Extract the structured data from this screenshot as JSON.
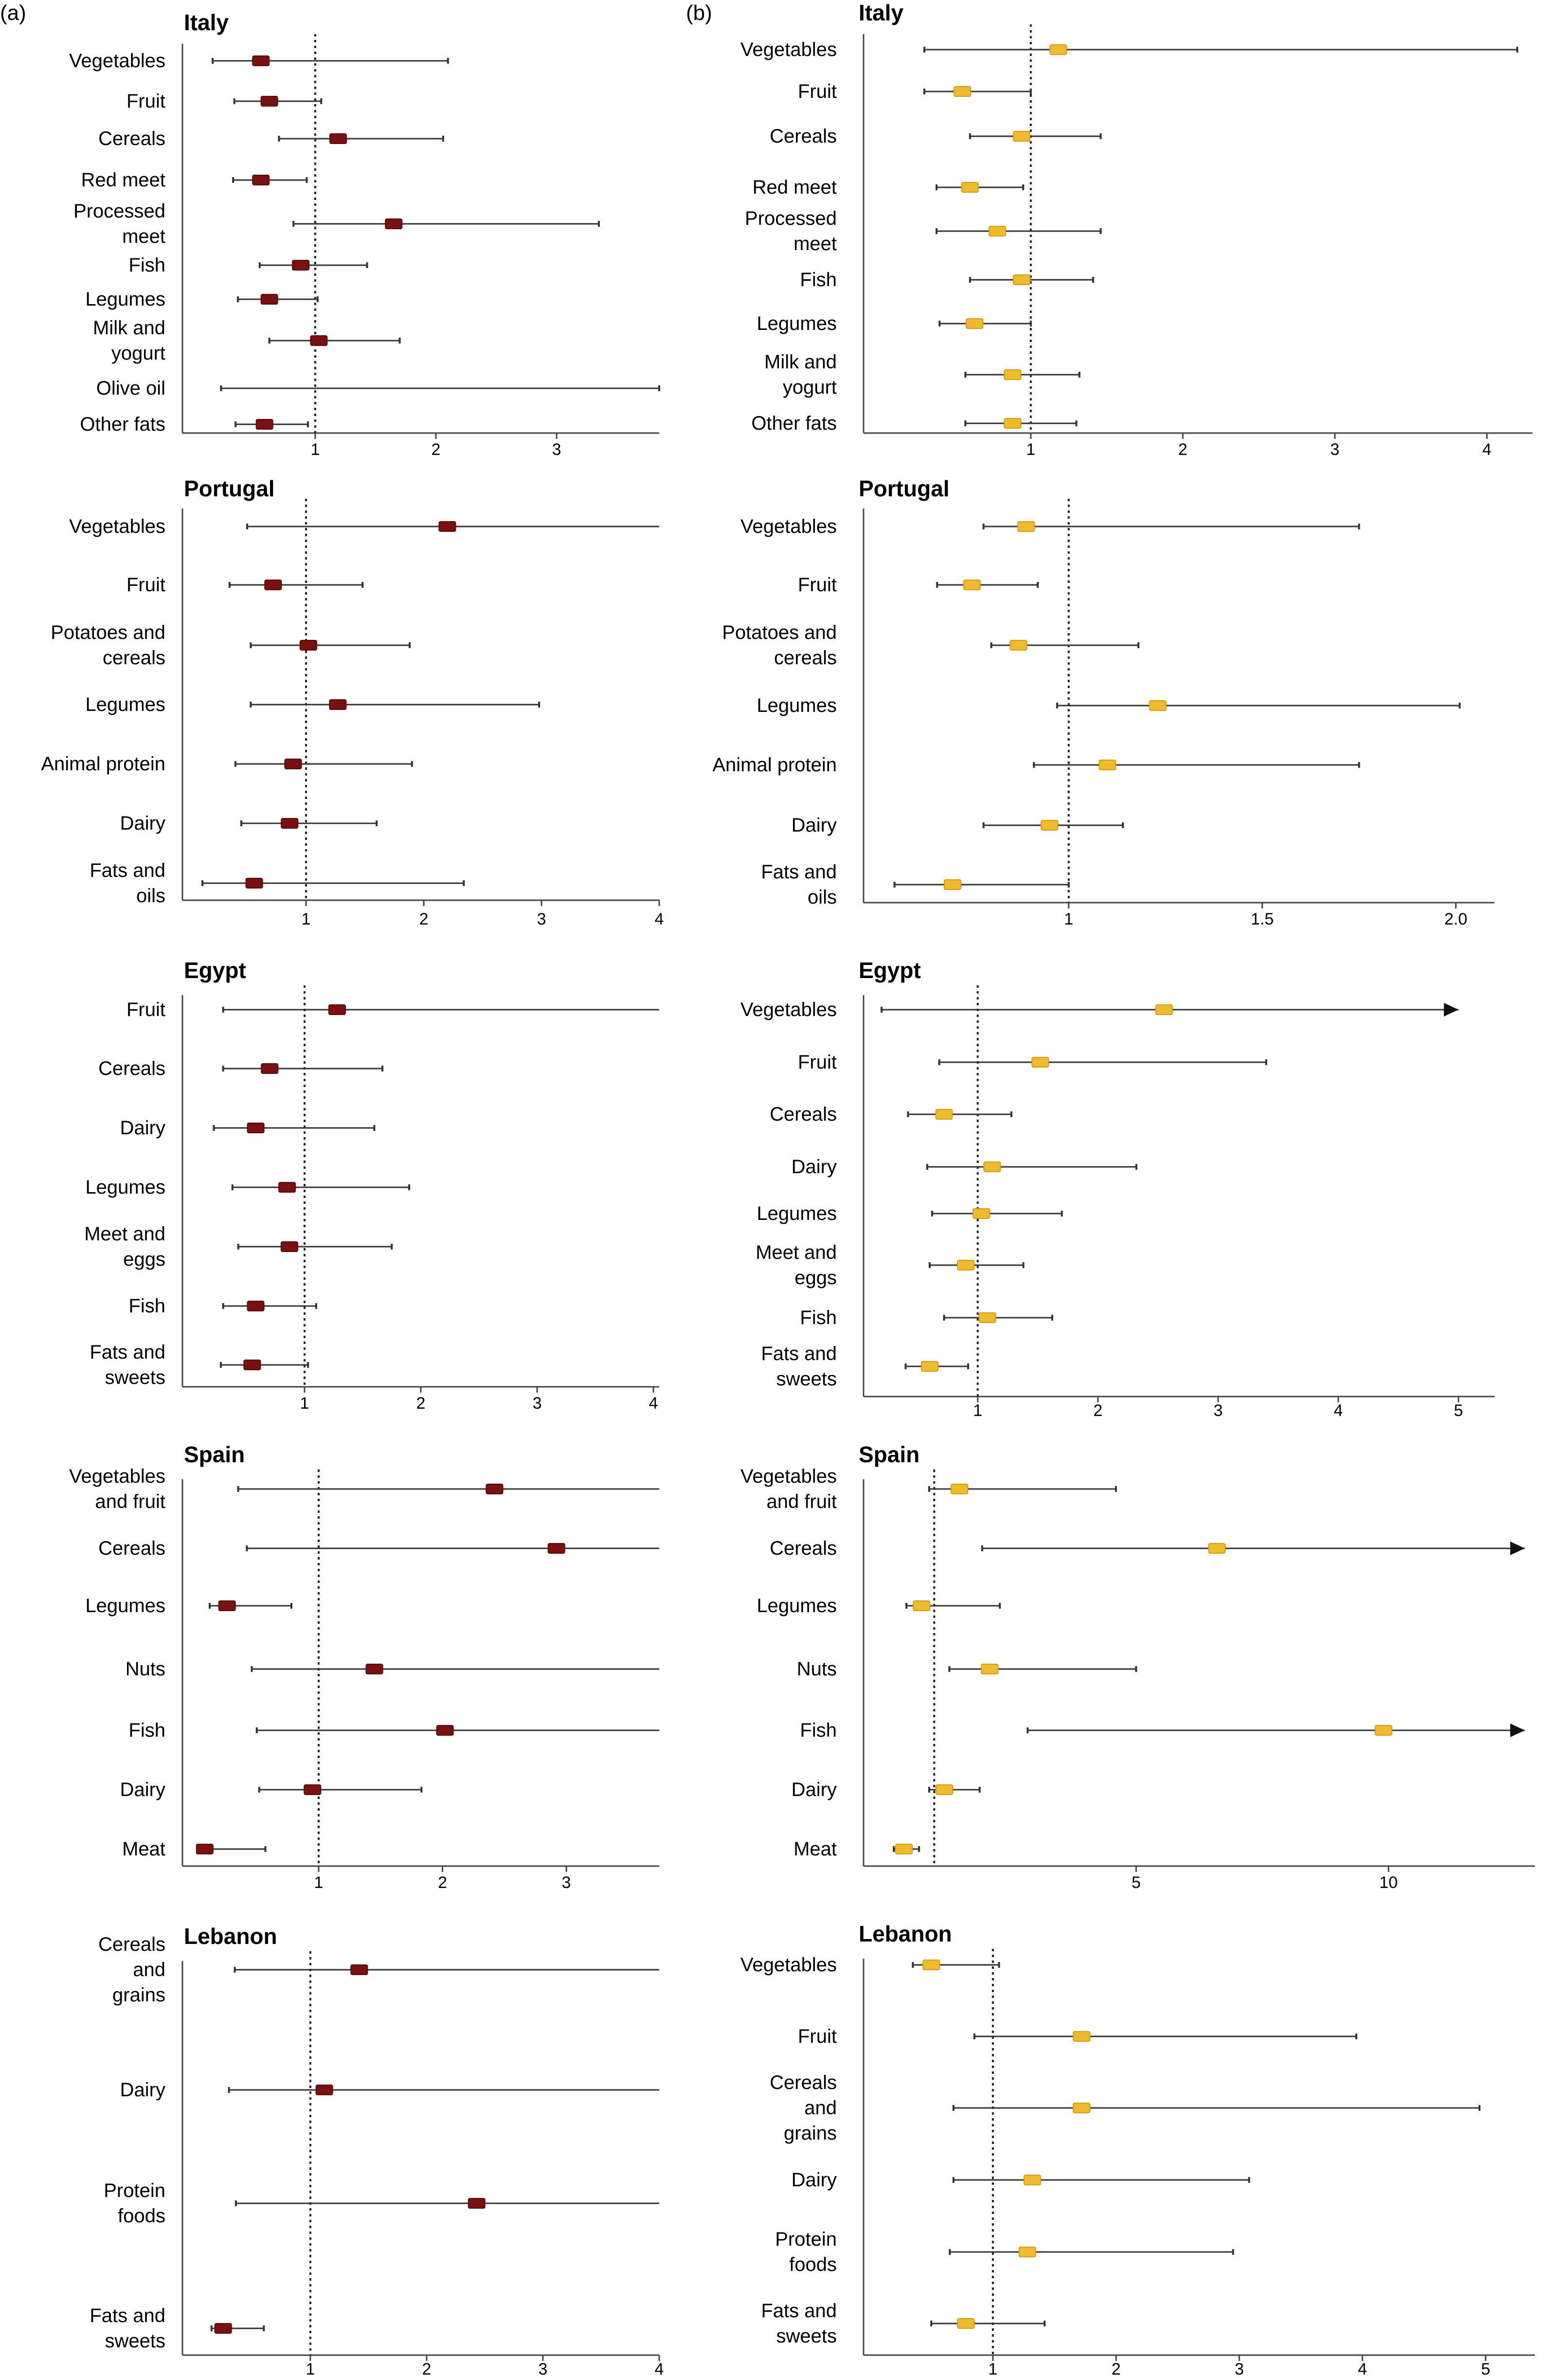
{
  "panel_labels": {
    "a": "(a)",
    "b": "(b)"
  },
  "colors": {
    "a": "#7a1010",
    "b": "#efbb2e",
    "a_edge": "#5a0808",
    "b_edge": "#d79a10",
    "line": "#333333",
    "axis": "#444444"
  },
  "chart_data": [
    {
      "id": "a-italy",
      "panel": "a",
      "title": "Italy",
      "type": "forest",
      "xlim": [
        -0.1,
        3.85
      ],
      "ticks": [
        1,
        2,
        3
      ],
      "ref": 1,
      "rows": [
        {
          "label": [
            "Vegetables"
          ],
          "est": 0.55,
          "lo": 0.15,
          "hi": 2.1
        },
        {
          "label": [
            "Fruit"
          ],
          "est": 0.62,
          "lo": 0.33,
          "hi": 1.05
        },
        {
          "label": [
            "Cereals"
          ],
          "est": 1.19,
          "lo": 0.7,
          "hi": 2.06
        },
        {
          "label": [
            "Red meet"
          ],
          "est": 0.55,
          "lo": 0.32,
          "hi": 0.93
        },
        {
          "label": [
            "Processed",
            "meet"
          ],
          "est": 1.65,
          "lo": 0.82,
          "hi": 3.35
        },
        {
          "label": [
            "Fish"
          ],
          "est": 0.88,
          "lo": 0.54,
          "hi": 1.43
        },
        {
          "label": [
            "Legumes"
          ],
          "est": 0.62,
          "lo": 0.36,
          "hi": 1.02
        },
        {
          "label": [
            "Milk and",
            "yogurt"
          ],
          "est": 1.03,
          "lo": 0.62,
          "hi": 1.7
        },
        {
          "label": [
            "Olive oil"
          ],
          "est": null,
          "lo": 0.22,
          "hi": 3.85,
          "arrow": false
        },
        {
          "label": [
            "Other fats"
          ],
          "est": 0.58,
          "lo": 0.34,
          "hi": 0.94
        }
      ]
    },
    {
      "id": "b-italy",
      "panel": "b",
      "title": "Italy",
      "type": "forest",
      "xlim": [
        -0.1,
        4.3
      ],
      "ticks": [
        1,
        2,
        3,
        4
      ],
      "ref": 1,
      "rows": [
        {
          "label": [
            "Vegetables"
          ],
          "est": 1.18,
          "lo": 0.3,
          "hi": 4.2
        },
        {
          "label": [
            "Fruit"
          ],
          "est": 0.55,
          "lo": 0.3,
          "hi": 1.0
        },
        {
          "label": [
            "Cereals"
          ],
          "est": 0.94,
          "lo": 0.6,
          "hi": 1.46
        },
        {
          "label": [
            "Red meet"
          ],
          "est": 0.6,
          "lo": 0.38,
          "hi": 0.95
        },
        {
          "label": [
            "Processed",
            "meet"
          ],
          "est": 0.78,
          "lo": 0.38,
          "hi": 1.46
        },
        {
          "label": [
            "Fish"
          ],
          "est": 0.94,
          "lo": 0.6,
          "hi": 1.41
        },
        {
          "label": [
            "Legumes"
          ],
          "est": 0.63,
          "lo": 0.4,
          "hi": 1.0
        },
        {
          "label": [
            "Milk and",
            "yogurt"
          ],
          "est": 0.88,
          "lo": 0.57,
          "hi": 1.32
        },
        {
          "label": [
            "Other fats"
          ],
          "est": 0.88,
          "lo": 0.57,
          "hi": 1.3
        }
      ]
    },
    {
      "id": "a-portugal",
      "panel": "a",
      "title": "Portugal",
      "type": "forest",
      "xlim": [
        -0.05,
        4.0
      ],
      "ticks": [
        1,
        2,
        3,
        4
      ],
      "ref": 1,
      "rows": [
        {
          "label": [
            "Vegetables"
          ],
          "est": 2.2,
          "lo": 0.5,
          "hi": 4.05
        },
        {
          "label": [
            "Fruit"
          ],
          "est": 0.72,
          "lo": 0.35,
          "hi": 1.48
        },
        {
          "label": [
            "Potatoes and",
            "cereals"
          ],
          "est": 1.02,
          "lo": 0.53,
          "hi": 1.88
        },
        {
          "label": [
            "Legumes"
          ],
          "est": 1.27,
          "lo": 0.53,
          "hi": 2.98
        },
        {
          "label": [
            "Animal protein"
          ],
          "est": 0.89,
          "lo": 0.4,
          "hi": 1.9
        },
        {
          "label": [
            "Dairy"
          ],
          "est": 0.86,
          "lo": 0.45,
          "hi": 1.6
        },
        {
          "label": [
            "Fats and",
            "oils"
          ],
          "est": 0.56,
          "lo": 0.12,
          "hi": 2.34
        }
      ]
    },
    {
      "id": "b-portugal",
      "panel": "b",
      "title": "Portugal",
      "type": "forest",
      "xlim": [
        0.47,
        2.1
      ],
      "ticks": [
        1,
        1.5,
        2.0
      ],
      "tick_labels": [
        "1",
        "1.5",
        "2.0"
      ],
      "ref": 1,
      "rows": [
        {
          "label": [
            "Vegetables"
          ],
          "est": 0.89,
          "lo": 0.78,
          "hi": 1.75
        },
        {
          "label": [
            "Fruit"
          ],
          "est": 0.75,
          "lo": 0.66,
          "hi": 0.92
        },
        {
          "label": [
            "Potatoes and",
            "cereals"
          ],
          "est": 0.87,
          "lo": 0.8,
          "hi": 1.18
        },
        {
          "label": [
            "Legumes"
          ],
          "est": 1.23,
          "lo": 0.97,
          "hi": 2.01
        },
        {
          "label": [
            "Animal protein"
          ],
          "est": 1.1,
          "lo": 0.91,
          "hi": 1.75
        },
        {
          "label": [
            "Dairy"
          ],
          "est": 0.95,
          "lo": 0.78,
          "hi": 1.14
        },
        {
          "label": [
            "Fats and",
            "oils"
          ],
          "est": 0.7,
          "lo": 0.55,
          "hi": 1.0
        }
      ]
    },
    {
      "id": "a-egypt",
      "panel": "a",
      "title": "Egypt",
      "type": "forest",
      "xlim": [
        -0.05,
        4.05
      ],
      "ticks": [
        1,
        2,
        3,
        4
      ],
      "ref": 1,
      "rows": [
        {
          "label": [
            "Fruit"
          ],
          "est": 1.28,
          "lo": 0.3,
          "hi": 4.1
        },
        {
          "label": [
            "Cereals"
          ],
          "est": 0.7,
          "lo": 0.3,
          "hi": 1.67
        },
        {
          "label": [
            "Dairy"
          ],
          "est": 0.58,
          "lo": 0.22,
          "hi": 1.6
        },
        {
          "label": [
            "Legumes"
          ],
          "est": 0.85,
          "lo": 0.38,
          "hi": 1.9
        },
        {
          "label": [
            "Meet and",
            "eggs"
          ],
          "est": 0.87,
          "lo": 0.43,
          "hi": 1.75
        },
        {
          "label": [
            "Fish"
          ],
          "est": 0.58,
          "lo": 0.3,
          "hi": 1.1
        },
        {
          "label": [
            "Fats and",
            "sweets"
          ],
          "est": 0.55,
          "lo": 0.28,
          "hi": 1.03
        }
      ]
    },
    {
      "id": "b-egypt",
      "panel": "b",
      "title": "Egypt",
      "type": "forest",
      "xlim": [
        0.05,
        5.3
      ],
      "ticks": [
        1,
        2,
        3,
        4,
        5
      ],
      "ref": 1,
      "rows": [
        {
          "label": [
            "Vegetables"
          ],
          "est": 2.55,
          "lo": 0.2,
          "hi": 5.0,
          "arrow": true
        },
        {
          "label": [
            "Fruit"
          ],
          "est": 1.52,
          "lo": 0.68,
          "hi": 3.4
        },
        {
          "label": [
            "Cereals"
          ],
          "est": 0.72,
          "lo": 0.42,
          "hi": 1.28
        },
        {
          "label": [
            "Dairy"
          ],
          "est": 1.12,
          "lo": 0.58,
          "hi": 2.32
        },
        {
          "label": [
            "Legumes"
          ],
          "est": 1.03,
          "lo": 0.62,
          "hi": 1.7
        },
        {
          "label": [
            "Meet and",
            "eggs"
          ],
          "est": 0.9,
          "lo": 0.6,
          "hi": 1.38
        },
        {
          "label": [
            "Fish"
          ],
          "est": 1.08,
          "lo": 0.72,
          "hi": 1.62
        },
        {
          "label": [
            "Fats and",
            "sweets"
          ],
          "est": 0.6,
          "lo": 0.4,
          "hi": 0.92
        }
      ]
    },
    {
      "id": "a-spain",
      "panel": "a",
      "title": "Spain",
      "type": "forest",
      "xlim": [
        -0.1,
        3.75
      ],
      "ticks": [
        1,
        2,
        3
      ],
      "ref": 1,
      "rows": [
        {
          "label": [
            "Vegetables",
            "and fruit"
          ],
          "est": 2.42,
          "lo": 0.35,
          "hi": 3.8
        },
        {
          "label": [
            "Cereals"
          ],
          "est": 2.92,
          "lo": 0.42,
          "hi": 3.8
        },
        {
          "label": [
            "Legumes"
          ],
          "est": 0.26,
          "lo": 0.12,
          "hi": 0.78
        },
        {
          "label": [
            "Nuts"
          ],
          "est": 1.45,
          "lo": 0.46,
          "hi": 3.8
        },
        {
          "label": [
            "Fish"
          ],
          "est": 2.02,
          "lo": 0.5,
          "hi": 3.8
        },
        {
          "label": [
            "Dairy"
          ],
          "est": 0.95,
          "lo": 0.52,
          "hi": 1.83
        },
        {
          "label": [
            "Meat"
          ],
          "est": 0.08,
          "lo": 0.02,
          "hi": 0.57
        }
      ]
    },
    {
      "id": "b-spain",
      "panel": "b",
      "title": "Spain",
      "type": "forest",
      "xlim": [
        -0.4,
        12.9
      ],
      "ticks": [
        5,
        10
      ],
      "ref": 1,
      "rows": [
        {
          "label": [
            "Vegetables",
            "and fruit"
          ],
          "est": 1.5,
          "lo": 0.9,
          "hi": 4.6
        },
        {
          "label": [
            "Cereals"
          ],
          "est": 6.6,
          "lo": 1.95,
          "hi": 12.7,
          "arrow": true
        },
        {
          "label": [
            "Legumes"
          ],
          "est": 0.75,
          "lo": 0.45,
          "hi": 2.3
        },
        {
          "label": [
            "Nuts"
          ],
          "est": 2.1,
          "lo": 1.3,
          "hi": 5.0
        },
        {
          "label": [
            "Fish"
          ],
          "est": 9.9,
          "lo": 2.85,
          "hi": 12.7,
          "arrow": true
        },
        {
          "label": [
            "Dairy"
          ],
          "est": 1.2,
          "lo": 0.9,
          "hi": 1.9
        },
        {
          "label": [
            "Meat"
          ],
          "est": 0.4,
          "lo": 0.2,
          "hi": 0.7
        }
      ]
    },
    {
      "id": "a-lebanon",
      "panel": "a",
      "title": "Lebanon",
      "type": "forest",
      "xlim": [
        -0.1,
        4.0
      ],
      "ticks": [
        1,
        2,
        3,
        4
      ],
      "ref": 1,
      "rows": [
        {
          "label": [
            "Cereals",
            "and",
            "grains"
          ],
          "est": 1.42,
          "lo": 0.35,
          "hi": 4.05
        },
        {
          "label": [
            "Dairy"
          ],
          "est": 1.12,
          "lo": 0.3,
          "hi": 4.05
        },
        {
          "label": [
            "Protein",
            "foods"
          ],
          "est": 2.43,
          "lo": 0.36,
          "hi": 4.05
        },
        {
          "label": [
            "Fats and",
            "sweets"
          ],
          "est": 0.25,
          "lo": 0.15,
          "hi": 0.6
        }
      ]
    },
    {
      "id": "b-lebanon",
      "panel": "b",
      "title": "Lebanon",
      "type": "forest",
      "xlim": [
        -0.05,
        5.4
      ],
      "ticks": [
        1,
        2,
        3,
        4,
        5
      ],
      "ref": 1,
      "rows": [
        {
          "label": [
            "Vegetables"
          ],
          "est": 0.5,
          "lo": 0.35,
          "hi": 1.05
        },
        {
          "label": [
            "Fruit"
          ],
          "est": 1.72,
          "lo": 0.85,
          "hi": 3.95
        },
        {
          "label": [
            "Cereals",
            "and",
            "grains"
          ],
          "est": 1.72,
          "lo": 0.68,
          "hi": 4.95
        },
        {
          "label": [
            "Dairy"
          ],
          "est": 1.32,
          "lo": 0.68,
          "hi": 3.08
        },
        {
          "label": [
            "Protein",
            "foods"
          ],
          "est": 1.28,
          "lo": 0.65,
          "hi": 2.95
        },
        {
          "label": [
            "Fats and",
            "sweets"
          ],
          "est": 0.78,
          "lo": 0.5,
          "hi": 1.42
        }
      ]
    }
  ]
}
